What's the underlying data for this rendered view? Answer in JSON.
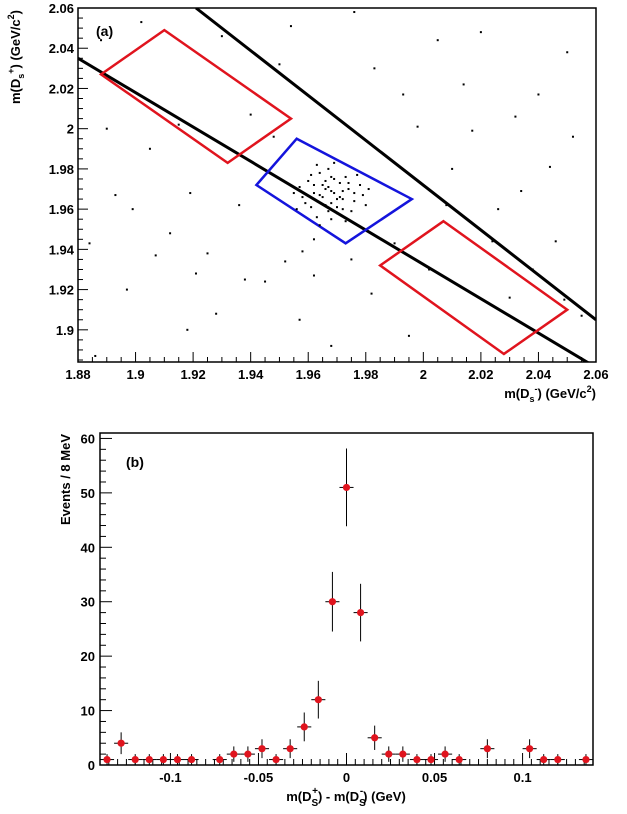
{
  "chart_data": [
    {
      "type": "scatter",
      "panel_label": "(a)",
      "xlabel": "m(D_s^-) (GeV/c^2)",
      "ylabel": "m(D_s^+) (GeV/c^2)",
      "xlim": [
        1.88,
        2.06
      ],
      "ylim": [
        1.884,
        2.06
      ],
      "xticks": [
        "1.88",
        "1.9",
        "1.92",
        "1.94",
        "1.96",
        "1.98",
        "2",
        "2.02",
        "2.04",
        "2.06"
      ],
      "yticks": [
        "1.9",
        "1.92",
        "1.94",
        "1.96",
        "1.98",
        "2",
        "2.02",
        "2.04",
        "2.06"
      ],
      "colors": {
        "band": "#000000",
        "sideband": "#e0141e",
        "signal": "#1414dc"
      },
      "band_lines": [
        [
          [
            1.88,
            2.035
          ],
          [
            2.058,
            1.883
          ]
        ],
        [
          [
            1.921,
            2.06
          ],
          [
            2.06,
            1.905
          ]
        ]
      ],
      "signal_box": [
        [
          1.956,
          1.995
        ],
        [
          1.996,
          1.965
        ],
        [
          1.973,
          1.943
        ],
        [
          1.942,
          1.972
        ]
      ],
      "sideband_boxes": [
        [
          [
            1.91,
            2.049
          ],
          [
            1.954,
            2.005
          ],
          [
            1.932,
            1.983
          ],
          [
            1.888,
            2.027
          ]
        ],
        [
          [
            2.007,
            1.954
          ],
          [
            2.05,
            1.91
          ],
          [
            2.028,
            1.888
          ],
          [
            1.985,
            1.932
          ]
        ]
      ],
      "points": [
        [
          1.968,
          1.969
        ],
        [
          1.965,
          1.972
        ],
        [
          1.971,
          1.966
        ],
        [
          1.962,
          1.968
        ],
        [
          1.974,
          1.97
        ],
        [
          1.969,
          1.975
        ],
        [
          1.966,
          1.962
        ],
        [
          1.972,
          1.96
        ],
        [
          1.96,
          1.974
        ],
        [
          1.976,
          1.964
        ],
        [
          1.964,
          1.978
        ],
        [
          1.97,
          1.958
        ],
        [
          1.958,
          1.966
        ],
        [
          1.978,
          1.972
        ],
        [
          1.967,
          1.98
        ],
        [
          1.973,
          1.976
        ],
        [
          1.961,
          1.961
        ],
        [
          1.975,
          1.959
        ],
        [
          1.963,
          1.956
        ],
        [
          1.979,
          1.967
        ],
        [
          1.957,
          1.971
        ],
        [
          1.968,
          1.963
        ],
        [
          1.971,
          1.973
        ],
        [
          1.965,
          1.966
        ],
        [
          1.969,
          1.968
        ],
        [
          1.966,
          1.97
        ],
        [
          1.97,
          1.965
        ],
        [
          1.967,
          1.971
        ],
        [
          1.972,
          1.969
        ],
        [
          1.964,
          1.967
        ],
        [
          1.974,
          1.973
        ],
        [
          1.962,
          1.972
        ],
        [
          1.976,
          1.968
        ],
        [
          1.959,
          1.963
        ],
        [
          1.981,
          1.97
        ],
        [
          1.955,
          1.968
        ],
        [
          1.968,
          1.955
        ],
        [
          1.969,
          1.983
        ],
        [
          1.977,
          1.977
        ],
        [
          1.961,
          1.977
        ],
        [
          1.98,
          1.962
        ],
        [
          1.956,
          1.96
        ],
        [
          1.973,
          1.954
        ],
        [
          1.964,
          1.952
        ],
        [
          1.963,
          1.982
        ],
        [
          1.97,
          1.961
        ],
        [
          1.966,
          1.974
        ],
        [
          1.972,
          1.965
        ],
        [
          1.967,
          1.959
        ],
        [
          1.968,
          1.976
        ],
        [
          1.884,
          1.943
        ],
        [
          1.886,
          1.887
        ],
        [
          1.89,
          2.0
        ],
        [
          1.897,
          1.92
        ],
        [
          1.905,
          1.99
        ],
        [
          1.912,
          1.948
        ],
        [
          1.918,
          1.9
        ],
        [
          1.925,
          1.938
        ],
        [
          1.93,
          2.046
        ],
        [
          1.936,
          1.962
        ],
        [
          1.945,
          1.924
        ],
        [
          1.95,
          2.032
        ],
        [
          1.957,
          1.905
        ],
        [
          1.962,
          1.927
        ],
        [
          1.968,
          1.892
        ],
        [
          1.975,
          1.935
        ],
        [
          1.982,
          1.918
        ],
        [
          1.99,
          1.943
        ],
        [
          1.995,
          1.897
        ],
        [
          2.002,
          1.93
        ],
        [
          2.01,
          1.98
        ],
        [
          2.014,
          2.022
        ],
        [
          2.02,
          2.048
        ],
        [
          2.026,
          1.96
        ],
        [
          2.032,
          2.006
        ],
        [
          2.038,
          1.93
        ],
        [
          2.044,
          1.981
        ],
        [
          2.05,
          2.038
        ],
        [
          2.055,
          1.907
        ],
        [
          1.888,
          2.044
        ],
        [
          1.893,
          1.967
        ],
        [
          1.902,
          2.053
        ],
        [
          1.915,
          2.002
        ],
        [
          1.921,
          1.928
        ],
        [
          1.928,
          1.908
        ],
        [
          1.938,
          1.925
        ],
        [
          1.948,
          1.996
        ],
        [
          1.954,
          2.051
        ],
        [
          1.983,
          2.03
        ],
        [
          1.993,
          2.017
        ],
        [
          2.005,
          2.044
        ],
        [
          2.017,
          1.999
        ],
        [
          2.024,
          1.944
        ],
        [
          2.03,
          1.916
        ],
        [
          2.04,
          2.017
        ],
        [
          2.046,
          1.944
        ],
        [
          2.052,
          1.996
        ],
        [
          1.899,
          1.96
        ],
        [
          1.907,
          1.937
        ],
        [
          1.919,
          1.968
        ],
        [
          1.94,
          2.007
        ],
        [
          1.976,
          2.058
        ],
        [
          1.998,
          2.001
        ],
        [
          2.008,
          1.962
        ],
        [
          2.034,
          1.969
        ],
        [
          2.049,
          1.915
        ],
        [
          1.962,
          1.945
        ],
        [
          1.952,
          1.934
        ],
        [
          1.958,
          1.939
        ]
      ]
    },
    {
      "type": "scatter",
      "panel_label": "(b)",
      "xlabel": "m(D_S^+) - m(D_S^-) (GeV)",
      "ylabel": "Events / 8 MeV",
      "xlim": [
        -0.14,
        0.14
      ],
      "ylim": [
        0,
        61
      ],
      "xticks": [
        -0.1,
        -0.05,
        0,
        0.05,
        0.1
      ],
      "xtick_labels": [
        "-0.1",
        "-0.05",
        "0",
        "0.05",
        "0.1"
      ],
      "yticks": [
        0,
        10,
        20,
        30,
        40,
        50,
        60
      ],
      "ytick_labels": [
        "0",
        "10",
        "20",
        "30",
        "40",
        "50",
        "60"
      ],
      "marker_color": "#e0141e",
      "x": [
        -0.136,
        -0.128,
        -0.12,
        -0.112,
        -0.104,
        -0.096,
        -0.088,
        -0.072,
        -0.064,
        -0.056,
        -0.048,
        -0.04,
        -0.032,
        -0.024,
        -0.016,
        -0.008,
        0.0,
        0.008,
        0.016,
        0.024,
        0.032,
        0.04,
        0.048,
        0.056,
        0.064,
        0.08,
        0.104,
        0.112,
        0.12,
        0.136
      ],
      "values": [
        1,
        4,
        1,
        1,
        1,
        1,
        1,
        1,
        2,
        2,
        3,
        1,
        3,
        7,
        12,
        30,
        51,
        28,
        5,
        2,
        2,
        1,
        1,
        2,
        1,
        3,
        3,
        1,
        1,
        1
      ]
    }
  ]
}
